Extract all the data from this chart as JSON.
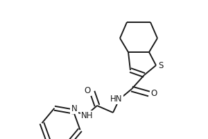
{
  "bg_color": "#ffffff",
  "line_color": "#1a1a1a",
  "line_width": 1.4,
  "font_size": 8.5,
  "layout": {
    "xlim": [
      0,
      300
    ],
    "ylim": [
      0,
      200
    ],
    "dpi": 100,
    "figw": 3.0,
    "figh": 2.0
  }
}
